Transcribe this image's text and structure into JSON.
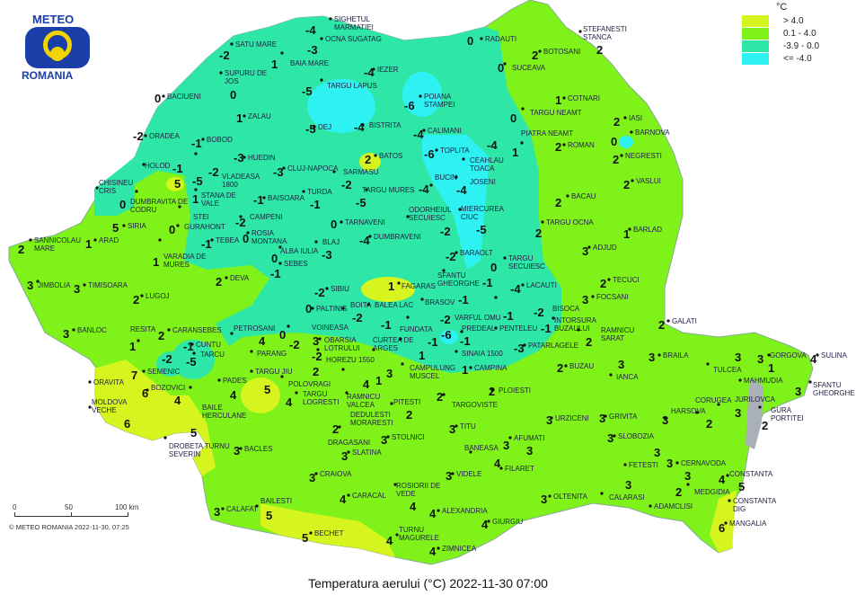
{
  "logo": {
    "top": "METEO",
    "bottom": "ROMANIA",
    "colors": {
      "blue": "#1a3fa8",
      "yellow": "#f2d400"
    }
  },
  "title": "Temperatura aerului (°C) 2022-11-30 07:00",
  "copyright": "© METEO ROMANIA 2022-11-30, 07:25",
  "scale": {
    "ticks": [
      "0",
      "50",
      "100 km"
    ]
  },
  "legend": {
    "unit": "°C",
    "classes": [
      {
        "label": "> 4.0",
        "color": "#d6f51e"
      },
      {
        "label": "0.1 - 4.0",
        "color": "#7ff21a"
      },
      {
        "label": "-3.9 - 0.0",
        "color": "#2ee6a6"
      },
      {
        "label": "<= -4.0",
        "color": "#2ef2f2"
      }
    ]
  },
  "stations": [
    {
      "name": "SIGHETUL MARMATIEI",
      "value": "-4"
    },
    {
      "name": "SATU MARE",
      "value": "-2"
    },
    {
      "name": "OCNA SUGATAG",
      "value": "-3"
    },
    {
      "name": "BAIA MARE",
      "value": "1"
    },
    {
      "name": "RADAUTI",
      "value": "0"
    },
    {
      "name": "STEFANESTI STANCA",
      "value": "2"
    },
    {
      "name": "BOTOSANI",
      "value": "2"
    },
    {
      "name": "SUCEAVA",
      "value": "0"
    },
    {
      "name": "SUPURU DE JOS",
      "value": "0"
    },
    {
      "name": "IEZER",
      "value": "-4"
    },
    {
      "name": "TARGU LAPUS",
      "value": "-5"
    },
    {
      "name": "BACIUENI",
      "value": "0"
    },
    {
      "name": "POIANA STAMPEI",
      "value": "-6"
    },
    {
      "name": "COTNARI",
      "value": "1"
    },
    {
      "name": "TARGU NEAMT",
      "value": "0"
    },
    {
      "name": "ZALAU",
      "value": "1"
    },
    {
      "name": "DEJ",
      "value": "-5"
    },
    {
      "name": "BISTRITA",
      "value": "-4"
    },
    {
      "name": "IASI",
      "value": "2"
    },
    {
      "name": "BARNOVA",
      "value": "0"
    },
    {
      "name": "ORADEA",
      "value": "-2"
    },
    {
      "name": "BOBOD",
      "value": "-1"
    },
    {
      "name": "CALIMANI",
      "value": "-4"
    },
    {
      "name": "PIATRA NEAMT",
      "value": "1"
    },
    {
      "name": "ROMAN",
      "value": "2"
    },
    {
      "name": "NEGRESTI",
      "value": "2"
    },
    {
      "name": "VLADEASA 1800",
      "value": "-2"
    },
    {
      "name": "HUEDIN",
      "value": "-3"
    },
    {
      "name": "STANA DE VALE",
      "value": "-5"
    },
    {
      "name": "BATOS",
      "value": "2"
    },
    {
      "name": "TOPLITA",
      "value": "-6"
    },
    {
      "name": "CEAHLAU TOACA",
      "value": "-4"
    },
    {
      "name": "HOLOD",
      "value": "-1"
    },
    {
      "name": "CLUJ-NAPOCA",
      "value": "-3"
    },
    {
      "name": "CHISINEU CRIS",
      "value": "0"
    },
    {
      "name": "DUMBRAVITA DE CODRU",
      "value": "5"
    },
    {
      "name": "STEI",
      "value": "1"
    },
    {
      "name": "SARMASU",
      "value": "-2"
    },
    {
      "name": "TURDA",
      "value": "-1"
    },
    {
      "name": "TARGU MURES",
      "value": "-5"
    },
    {
      "name": "BAISOARA",
      "value": "-1"
    },
    {
      "name": "BUCIN",
      "value": "-4"
    },
    {
      "name": "JOSENI",
      "value": "-4"
    },
    {
      "name": "ODORHEIUL SECUIESC",
      "value": "-2"
    },
    {
      "name": "MIERCUREA CIUC",
      "value": "-5"
    },
    {
      "name": "TARNAVENI",
      "value": "0"
    },
    {
      "name": "DUMBRAVENI",
      "value": "-4"
    },
    {
      "name": "BACAU",
      "value": "2"
    },
    {
      "name": "VASLUI",
      "value": "2"
    },
    {
      "name": "TARGU OCNA",
      "value": "2"
    },
    {
      "name": "BARLAD",
      "value": "1"
    },
    {
      "name": "ADJUD",
      "value": "3"
    },
    {
      "name": "SIRIA",
      "value": "5"
    },
    {
      "name": "GURAHONT",
      "value": "0"
    },
    {
      "name": "CAMPENI",
      "value": "-2"
    },
    {
      "name": "ROSIA MONTANA",
      "value": "0"
    },
    {
      "name": "SANNICOLAU MARE",
      "value": "2"
    },
    {
      "name": "ARAD",
      "value": "1"
    },
    {
      "name": "VARADIA DE MURES",
      "value": "1"
    },
    {
      "name": "TEBEA",
      "value": "-1"
    },
    {
      "name": "ALBA IULIA",
      "value": "0"
    },
    {
      "name": "SEBES",
      "value": "-1"
    },
    {
      "name": "BLAJ",
      "value": "-3"
    },
    {
      "name": "BARAOLT",
      "value": "-2"
    },
    {
      "name": "TARGU SECUIESC",
      "value": "0"
    },
    {
      "name": "SFANTU GHEORGHE",
      "value": "-1"
    },
    {
      "name": "TECUCI",
      "value": "2"
    },
    {
      "name": "JIMBOLIA",
      "value": "3"
    },
    {
      "name": "TIMISOARA",
      "value": "3"
    },
    {
      "name": "DEVA",
      "value": "2"
    },
    {
      "name": "LUGOJ",
      "value": "2"
    },
    {
      "name": "SIBIU",
      "value": "-2"
    },
    {
      "name": "FAGARAS",
      "value": "1"
    },
    {
      "name": "BRASOV",
      "value": "-1"
    },
    {
      "name": "LACAUTI",
      "value": "-4"
    },
    {
      "name": "FOCSANI",
      "value": "3"
    },
    {
      "name": "PALTINIS",
      "value": "0"
    },
    {
      "name": "BOITA",
      "value": "-2"
    },
    {
      "name": "BALEA LAC",
      "value": "-1"
    },
    {
      "name": "VARFUL OMU",
      "value": "-2"
    },
    {
      "name": "PREDEAL",
      "value": "-6"
    },
    {
      "name": "INTORSURA BUZAULUI",
      "value": "-1"
    },
    {
      "name": "PENTELEU",
      "value": "-2"
    },
    {
      "name": "BISOCA",
      "value": "-1"
    },
    {
      "name": "RAMNICU SARAT",
      "value": "2"
    },
    {
      "name": "GALATI",
      "value": "2"
    },
    {
      "name": "PATARLAGELE",
      "value": "-3"
    },
    {
      "name": "BANLOC",
      "value": "3"
    },
    {
      "name": "CARANSEBES",
      "value": "2"
    },
    {
      "name": "RESITA",
      "value": "1"
    },
    {
      "name": "CUNTU",
      "value": "-1"
    },
    {
      "name": "TARCU",
      "value": "-5"
    },
    {
      "name": "SEMENIC",
      "value": "-2"
    },
    {
      "name": "PETROSANI",
      "value": "4"
    },
    {
      "name": "OBARSIA LOTRULUI",
      "value": "0"
    },
    {
      "name": "PARANG",
      "value": "-2"
    },
    {
      "name": "VOINEASA",
      "value": "3"
    },
    {
      "name": "HOREZU 1550",
      "value": "-2"
    },
    {
      "name": "CURTEA DE ARGES",
      "value": "3"
    },
    {
      "name": "FUNDATA",
      "value": "-1"
    },
    {
      "name": "CAMPULUNG MUSCEL",
      "value": "1"
    },
    {
      "name": "SINAIA 1500",
      "value": "-1"
    },
    {
      "name": "CAMPINA",
      "value": "1"
    },
    {
      "name": "BUZAU",
      "value": "2"
    },
    {
      "name": "IANCA",
      "value": "3"
    },
    {
      "name": "BRAILA",
      "value": "3"
    },
    {
      "name": "TULCEA",
      "value": "3"
    },
    {
      "name": "GORGOVA",
      "value": "3"
    },
    {
      "name": "MAHMUDIA",
      "value": "1"
    },
    {
      "name": "SULINA",
      "value": "4"
    },
    {
      "name": "SFANTU GHEORGHE",
      "value": "3"
    },
    {
      "name": "ORAVITA",
      "value": "7"
    },
    {
      "name": "PADES",
      "value": "4"
    },
    {
      "name": "TARGU JIU",
      "value": "5"
    },
    {
      "name": "POLOVRAGI",
      "value": "2"
    },
    {
      "name": "RAMNICU VALCEA",
      "value": "4"
    },
    {
      "name": "DEDULESTI MORARESTI",
      "value": "1"
    },
    {
      "name": "BOZOVICI",
      "value": "6"
    },
    {
      "name": "BAILE HERCULANE",
      "value": "4"
    },
    {
      "name": "TARGU LOGRESTI",
      "value": "4"
    },
    {
      "name": "PITESTI",
      "value": "2"
    },
    {
      "name": "TARGOVISTE",
      "value": "2"
    },
    {
      "name": "PLOIESTI",
      "value": "2"
    },
    {
      "name": "MOLDOVA VECHE",
      "value": "6"
    },
    {
      "name": "URZICENI",
      "value": "3"
    },
    {
      "name": "GRIVITA",
      "value": "3"
    },
    {
      "name": "HARSOVA",
      "value": "3"
    },
    {
      "name": "CORUGEA",
      "value": "2"
    },
    {
      "name": "JURILOVCA",
      "value": "3"
    },
    {
      "name": "GURA PORTITEI",
      "value": "2"
    },
    {
      "name": "DROBETA TURNU SEVERIN",
      "value": "5"
    },
    {
      "name": "DRAGASANI",
      "value": "2"
    },
    {
      "name": "TITU",
      "value": "3"
    },
    {
      "name": "SLOBOZIA",
      "value": "3"
    },
    {
      "name": "BACLES",
      "value": "3"
    },
    {
      "name": "STOLNICI",
      "value": "3"
    },
    {
      "name": "SLATINA",
      "value": "3"
    },
    {
      "name": "BANEASA",
      "value": "3"
    },
    {
      "name": "AFUMATI",
      "value": "3"
    },
    {
      "name": "FILARET",
      "value": "4"
    },
    {
      "name": "CERNAVODA",
      "value": "3"
    },
    {
      "name": "FETESTI",
      "value": "3"
    },
    {
      "name": "CONSTANTA",
      "value": "4"
    },
    {
      "name": "CONSTANTA DIG",
      "value": "5"
    },
    {
      "name": "CRAIOVA",
      "value": "3"
    },
    {
      "name": "CALAFAT",
      "value": "3"
    },
    {
      "name": "BAILESTI",
      "value": "5"
    },
    {
      "name": "BECHET",
      "value": "5"
    },
    {
      "name": "CARACAL",
      "value": "4"
    },
    {
      "name": "ROSIORII DE VEDE",
      "value": "4"
    },
    {
      "name": "VIDELE",
      "value": "3"
    },
    {
      "name": "ALEXANDRIA",
      "value": "4"
    },
    {
      "name": "TURNU MAGURELE",
      "value": "4"
    },
    {
      "name": "ZIMNICEA",
      "value": "4"
    },
    {
      "name": "GIURGIU",
      "value": "4"
    },
    {
      "name": "OLTENITA",
      "value": "3"
    },
    {
      "name": "CALARASI",
      "value": "3"
    },
    {
      "name": "ADAMCLISI",
      "value": "2"
    },
    {
      "name": "MEDGIDIA",
      "value": "3"
    },
    {
      "name": "MANGALIA",
      "value": "6"
    }
  ]
}
